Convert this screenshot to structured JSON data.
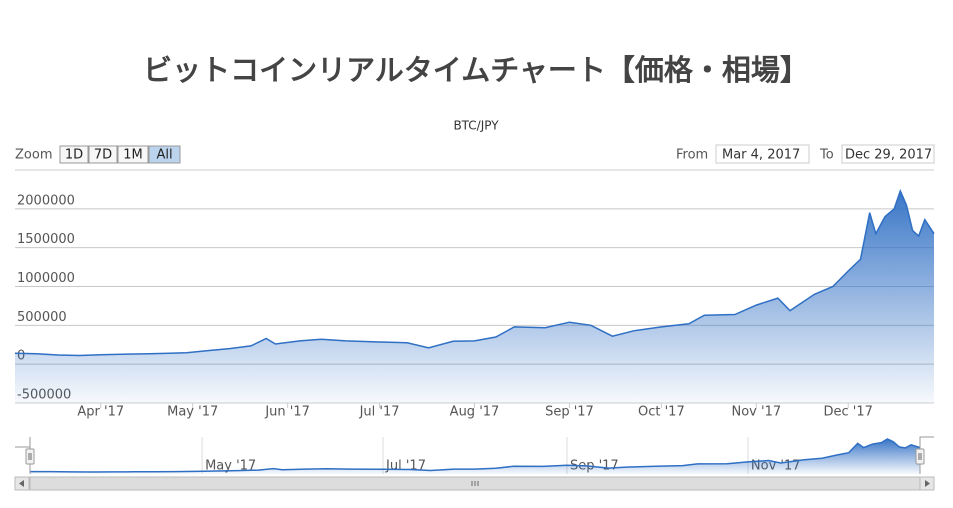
{
  "chart_data": {
    "type": "area",
    "title": "ビットコインリアルタイムチャート【価格・相場】",
    "subtitle": "BTC/JPY",
    "zoom_label": "Zoom",
    "zoom_buttons": [
      "1D",
      "7D",
      "1M",
      "All"
    ],
    "from_label": "From",
    "from": "Mar 4, 2017",
    "to_label": "To",
    "to": "Dec 29, 2017",
    "xlim": [
      "2017-03-04",
      "2017-12-29"
    ],
    "ylim": [
      -500000,
      2500000
    ],
    "yticks": [
      -500000,
      0,
      500000,
      1000000,
      1500000,
      2000000
    ],
    "xticks": [
      {
        "value": "2017-04-01",
        "label": "Apr '17"
      },
      {
        "value": "2017-05-01",
        "label": "May '17"
      },
      {
        "value": "2017-06-01",
        "label": "Jun '17"
      },
      {
        "value": "2017-07-01",
        "label": "Jul '17"
      },
      {
        "value": "2017-08-01",
        "label": "Aug '17"
      },
      {
        "value": "2017-09-01",
        "label": "Sep '17"
      },
      {
        "value": "2017-10-01",
        "label": "Oct '17"
      },
      {
        "value": "2017-11-01",
        "label": "Nov '17"
      },
      {
        "value": "2017-12-01",
        "label": "Dec '17"
      }
    ],
    "navigator_xticks": [
      {
        "value": "2017-05-01",
        "label": "May '17"
      },
      {
        "value": "2017-07-01",
        "label": "Jul '17"
      },
      {
        "value": "2017-09-01",
        "label": "Sep '17"
      },
      {
        "value": "2017-11-01",
        "label": "Nov '17"
      }
    ],
    "grid": true,
    "x": [
      "2017-03-04",
      "2017-03-11",
      "2017-03-18",
      "2017-03-25",
      "2017-04-01",
      "2017-04-08",
      "2017-04-15",
      "2017-04-22",
      "2017-04-29",
      "2017-05-06",
      "2017-05-13",
      "2017-05-20",
      "2017-05-25",
      "2017-05-28",
      "2017-06-05",
      "2017-06-12",
      "2017-06-20",
      "2017-07-01",
      "2017-07-10",
      "2017-07-17",
      "2017-07-25",
      "2017-08-01",
      "2017-08-08",
      "2017-08-14",
      "2017-08-24",
      "2017-09-01",
      "2017-09-08",
      "2017-09-15",
      "2017-09-22",
      "2017-10-01",
      "2017-10-10",
      "2017-10-15",
      "2017-10-25",
      "2017-11-01",
      "2017-11-08",
      "2017-11-12",
      "2017-11-20",
      "2017-11-26",
      "2017-12-01",
      "2017-12-05",
      "2017-12-08",
      "2017-12-10",
      "2017-12-13",
      "2017-12-16",
      "2017-12-18",
      "2017-12-20",
      "2017-12-22",
      "2017-12-24",
      "2017-12-26",
      "2017-12-29"
    ],
    "series": [
      {
        "color": "#2f6fc4",
        "values": [
          140000,
          135000,
          118000,
          112000,
          120000,
          128000,
          132000,
          138000,
          148000,
          175000,
          200000,
          235000,
          330000,
          260000,
          300000,
          320000,
          300000,
          285000,
          275000,
          210000,
          295000,
          300000,
          350000,
          480000,
          470000,
          540000,
          500000,
          360000,
          430000,
          480000,
          520000,
          630000,
          640000,
          760000,
          850000,
          690000,
          900000,
          1000000,
          1200000,
          1350000,
          1950000,
          1680000,
          1900000,
          2000000,
          2230000,
          2050000,
          1720000,
          1650000,
          1860000,
          1680000
        ]
      }
    ]
  }
}
